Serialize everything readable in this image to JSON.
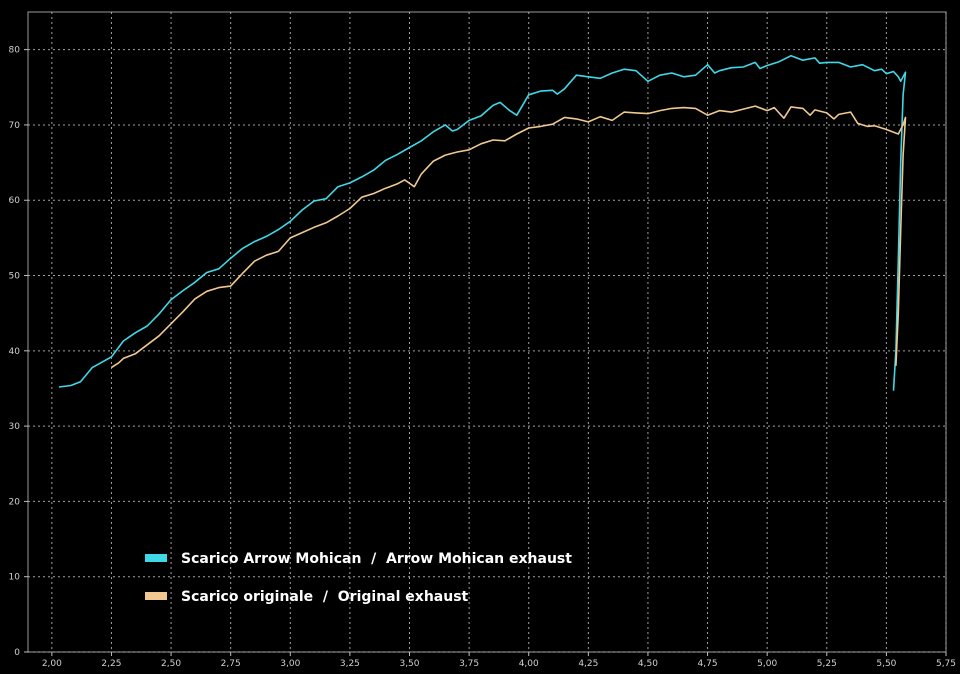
{
  "chart_data": {
    "type": "line",
    "xlim": [
      1.9,
      5.75
    ],
    "ylim": [
      0,
      85
    ],
    "x_ticks": [
      "2,00",
      "2,25",
      "2,50",
      "2,75",
      "3,00",
      "3,25",
      "3,50",
      "3,75",
      "4,00",
      "4,25",
      "4,50",
      "4,75",
      "5,00",
      "5,25",
      "5,50",
      "5,75"
    ],
    "x_tick_values": [
      2.0,
      2.25,
      2.5,
      2.75,
      3.0,
      3.25,
      3.5,
      3.75,
      4.0,
      4.25,
      4.5,
      4.75,
      5.0,
      5.25,
      5.5,
      5.75
    ],
    "y_ticks": [
      "0",
      "10",
      "20",
      "30",
      "40",
      "50",
      "60",
      "70",
      "80"
    ],
    "y_tick_values": [
      0,
      10,
      20,
      30,
      40,
      50,
      60,
      70,
      80
    ],
    "grid": true,
    "legend_position": "bottom-left",
    "series": [
      {
        "name": "Scarico Arrow Mohican  /  Arrow Mohican exhaust",
        "color": "#3fd8e8",
        "points": [
          [
            2.03,
            35.2
          ],
          [
            2.08,
            35.4
          ],
          [
            2.12,
            35.9
          ],
          [
            2.17,
            37.8
          ],
          [
            2.2,
            38.3
          ],
          [
            2.25,
            39.2
          ],
          [
            2.3,
            41.3
          ],
          [
            2.35,
            42.4
          ],
          [
            2.4,
            43.3
          ],
          [
            2.45,
            44.9
          ],
          [
            2.5,
            46.8
          ],
          [
            2.55,
            48.0
          ],
          [
            2.6,
            49.1
          ],
          [
            2.65,
            50.4
          ],
          [
            2.7,
            50.9
          ],
          [
            2.75,
            52.3
          ],
          [
            2.8,
            53.6
          ],
          [
            2.85,
            54.5
          ],
          [
            2.9,
            55.2
          ],
          [
            2.95,
            56.1
          ],
          [
            3.0,
            57.2
          ],
          [
            3.05,
            58.7
          ],
          [
            3.1,
            59.9
          ],
          [
            3.15,
            60.2
          ],
          [
            3.2,
            61.8
          ],
          [
            3.25,
            62.3
          ],
          [
            3.3,
            63.1
          ],
          [
            3.35,
            64.0
          ],
          [
            3.4,
            65.3
          ],
          [
            3.45,
            66.1
          ],
          [
            3.5,
            67.0
          ],
          [
            3.55,
            67.9
          ],
          [
            3.6,
            69.1
          ],
          [
            3.65,
            70.0
          ],
          [
            3.68,
            69.2
          ],
          [
            3.7,
            69.4
          ],
          [
            3.75,
            70.6
          ],
          [
            3.8,
            71.2
          ],
          [
            3.85,
            72.6
          ],
          [
            3.88,
            73.0
          ],
          [
            3.92,
            71.9
          ],
          [
            3.95,
            71.3
          ],
          [
            4.0,
            74.0
          ],
          [
            4.05,
            74.5
          ],
          [
            4.1,
            74.6
          ],
          [
            4.12,
            74.1
          ],
          [
            4.15,
            74.8
          ],
          [
            4.2,
            76.6
          ],
          [
            4.25,
            76.4
          ],
          [
            4.3,
            76.2
          ],
          [
            4.35,
            76.9
          ],
          [
            4.4,
            77.4
          ],
          [
            4.45,
            77.2
          ],
          [
            4.5,
            75.8
          ],
          [
            4.55,
            76.6
          ],
          [
            4.6,
            76.9
          ],
          [
            4.65,
            76.4
          ],
          [
            4.7,
            76.6
          ],
          [
            4.75,
            78.0
          ],
          [
            4.78,
            76.9
          ],
          [
            4.8,
            77.2
          ],
          [
            4.85,
            77.6
          ],
          [
            4.9,
            77.7
          ],
          [
            4.95,
            78.3
          ],
          [
            4.97,
            77.5
          ],
          [
            5.0,
            77.9
          ],
          [
            5.05,
            78.4
          ],
          [
            5.1,
            79.2
          ],
          [
            5.15,
            78.6
          ],
          [
            5.2,
            78.9
          ],
          [
            5.22,
            78.2
          ],
          [
            5.25,
            78.3
          ],
          [
            5.3,
            78.3
          ],
          [
            5.35,
            77.7
          ],
          [
            5.4,
            78.0
          ],
          [
            5.45,
            77.2
          ],
          [
            5.48,
            77.4
          ],
          [
            5.5,
            76.8
          ],
          [
            5.53,
            77.1
          ],
          [
            5.55,
            76.4
          ],
          [
            5.56,
            75.8
          ],
          [
            5.57,
            76.4
          ],
          [
            5.58,
            77.0
          ],
          [
            5.57,
            74.0
          ],
          [
            5.56,
            65.0
          ],
          [
            5.55,
            52.0
          ],
          [
            5.54,
            40.0
          ],
          [
            5.53,
            34.7
          ]
        ]
      },
      {
        "name": "Scarico originale  /  Original exhaust",
        "color": "#f0c890",
        "points": [
          [
            2.25,
            37.8
          ],
          [
            2.28,
            38.4
          ],
          [
            2.3,
            39.0
          ],
          [
            2.35,
            39.6
          ],
          [
            2.4,
            40.8
          ],
          [
            2.45,
            42.0
          ],
          [
            2.5,
            43.6
          ],
          [
            2.55,
            45.2
          ],
          [
            2.6,
            46.9
          ],
          [
            2.65,
            47.9
          ],
          [
            2.7,
            48.4
          ],
          [
            2.75,
            48.6
          ],
          [
            2.8,
            50.3
          ],
          [
            2.85,
            51.9
          ],
          [
            2.9,
            52.7
          ],
          [
            2.95,
            53.2
          ],
          [
            3.0,
            55.0
          ],
          [
            3.05,
            55.7
          ],
          [
            3.1,
            56.4
          ],
          [
            3.15,
            57.0
          ],
          [
            3.2,
            57.9
          ],
          [
            3.25,
            58.9
          ],
          [
            3.3,
            60.4
          ],
          [
            3.35,
            60.9
          ],
          [
            3.4,
            61.6
          ],
          [
            3.45,
            62.2
          ],
          [
            3.48,
            62.7
          ],
          [
            3.52,
            61.8
          ],
          [
            3.55,
            63.5
          ],
          [
            3.6,
            65.2
          ],
          [
            3.65,
            66.0
          ],
          [
            3.7,
            66.4
          ],
          [
            3.75,
            66.7
          ],
          [
            3.8,
            67.5
          ],
          [
            3.85,
            68.0
          ],
          [
            3.9,
            67.9
          ],
          [
            3.95,
            68.8
          ],
          [
            4.0,
            69.6
          ],
          [
            4.05,
            69.8
          ],
          [
            4.1,
            70.1
          ],
          [
            4.15,
            71.0
          ],
          [
            4.2,
            70.8
          ],
          [
            4.25,
            70.4
          ],
          [
            4.3,
            71.1
          ],
          [
            4.35,
            70.6
          ],
          [
            4.4,
            71.7
          ],
          [
            4.45,
            71.6
          ],
          [
            4.5,
            71.5
          ],
          [
            4.55,
            71.9
          ],
          [
            4.6,
            72.2
          ],
          [
            4.65,
            72.3
          ],
          [
            4.7,
            72.2
          ],
          [
            4.75,
            71.3
          ],
          [
            4.8,
            71.9
          ],
          [
            4.85,
            71.7
          ],
          [
            4.9,
            72.1
          ],
          [
            4.95,
            72.5
          ],
          [
            5.0,
            71.9
          ],
          [
            5.03,
            72.3
          ],
          [
            5.07,
            70.9
          ],
          [
            5.1,
            72.4
          ],
          [
            5.15,
            72.2
          ],
          [
            5.18,
            71.3
          ],
          [
            5.2,
            72.0
          ],
          [
            5.25,
            71.6
          ],
          [
            5.28,
            70.8
          ],
          [
            5.3,
            71.4
          ],
          [
            5.35,
            71.7
          ],
          [
            5.38,
            70.2
          ],
          [
            5.42,
            69.8
          ],
          [
            5.45,
            69.9
          ],
          [
            5.5,
            69.4
          ],
          [
            5.55,
            68.8
          ],
          [
            5.57,
            70.0
          ],
          [
            5.58,
            71.0
          ],
          [
            5.57,
            66.0
          ],
          [
            5.56,
            56.0
          ],
          [
            5.55,
            45.0
          ],
          [
            5.54,
            38.0
          ]
        ]
      }
    ]
  }
}
